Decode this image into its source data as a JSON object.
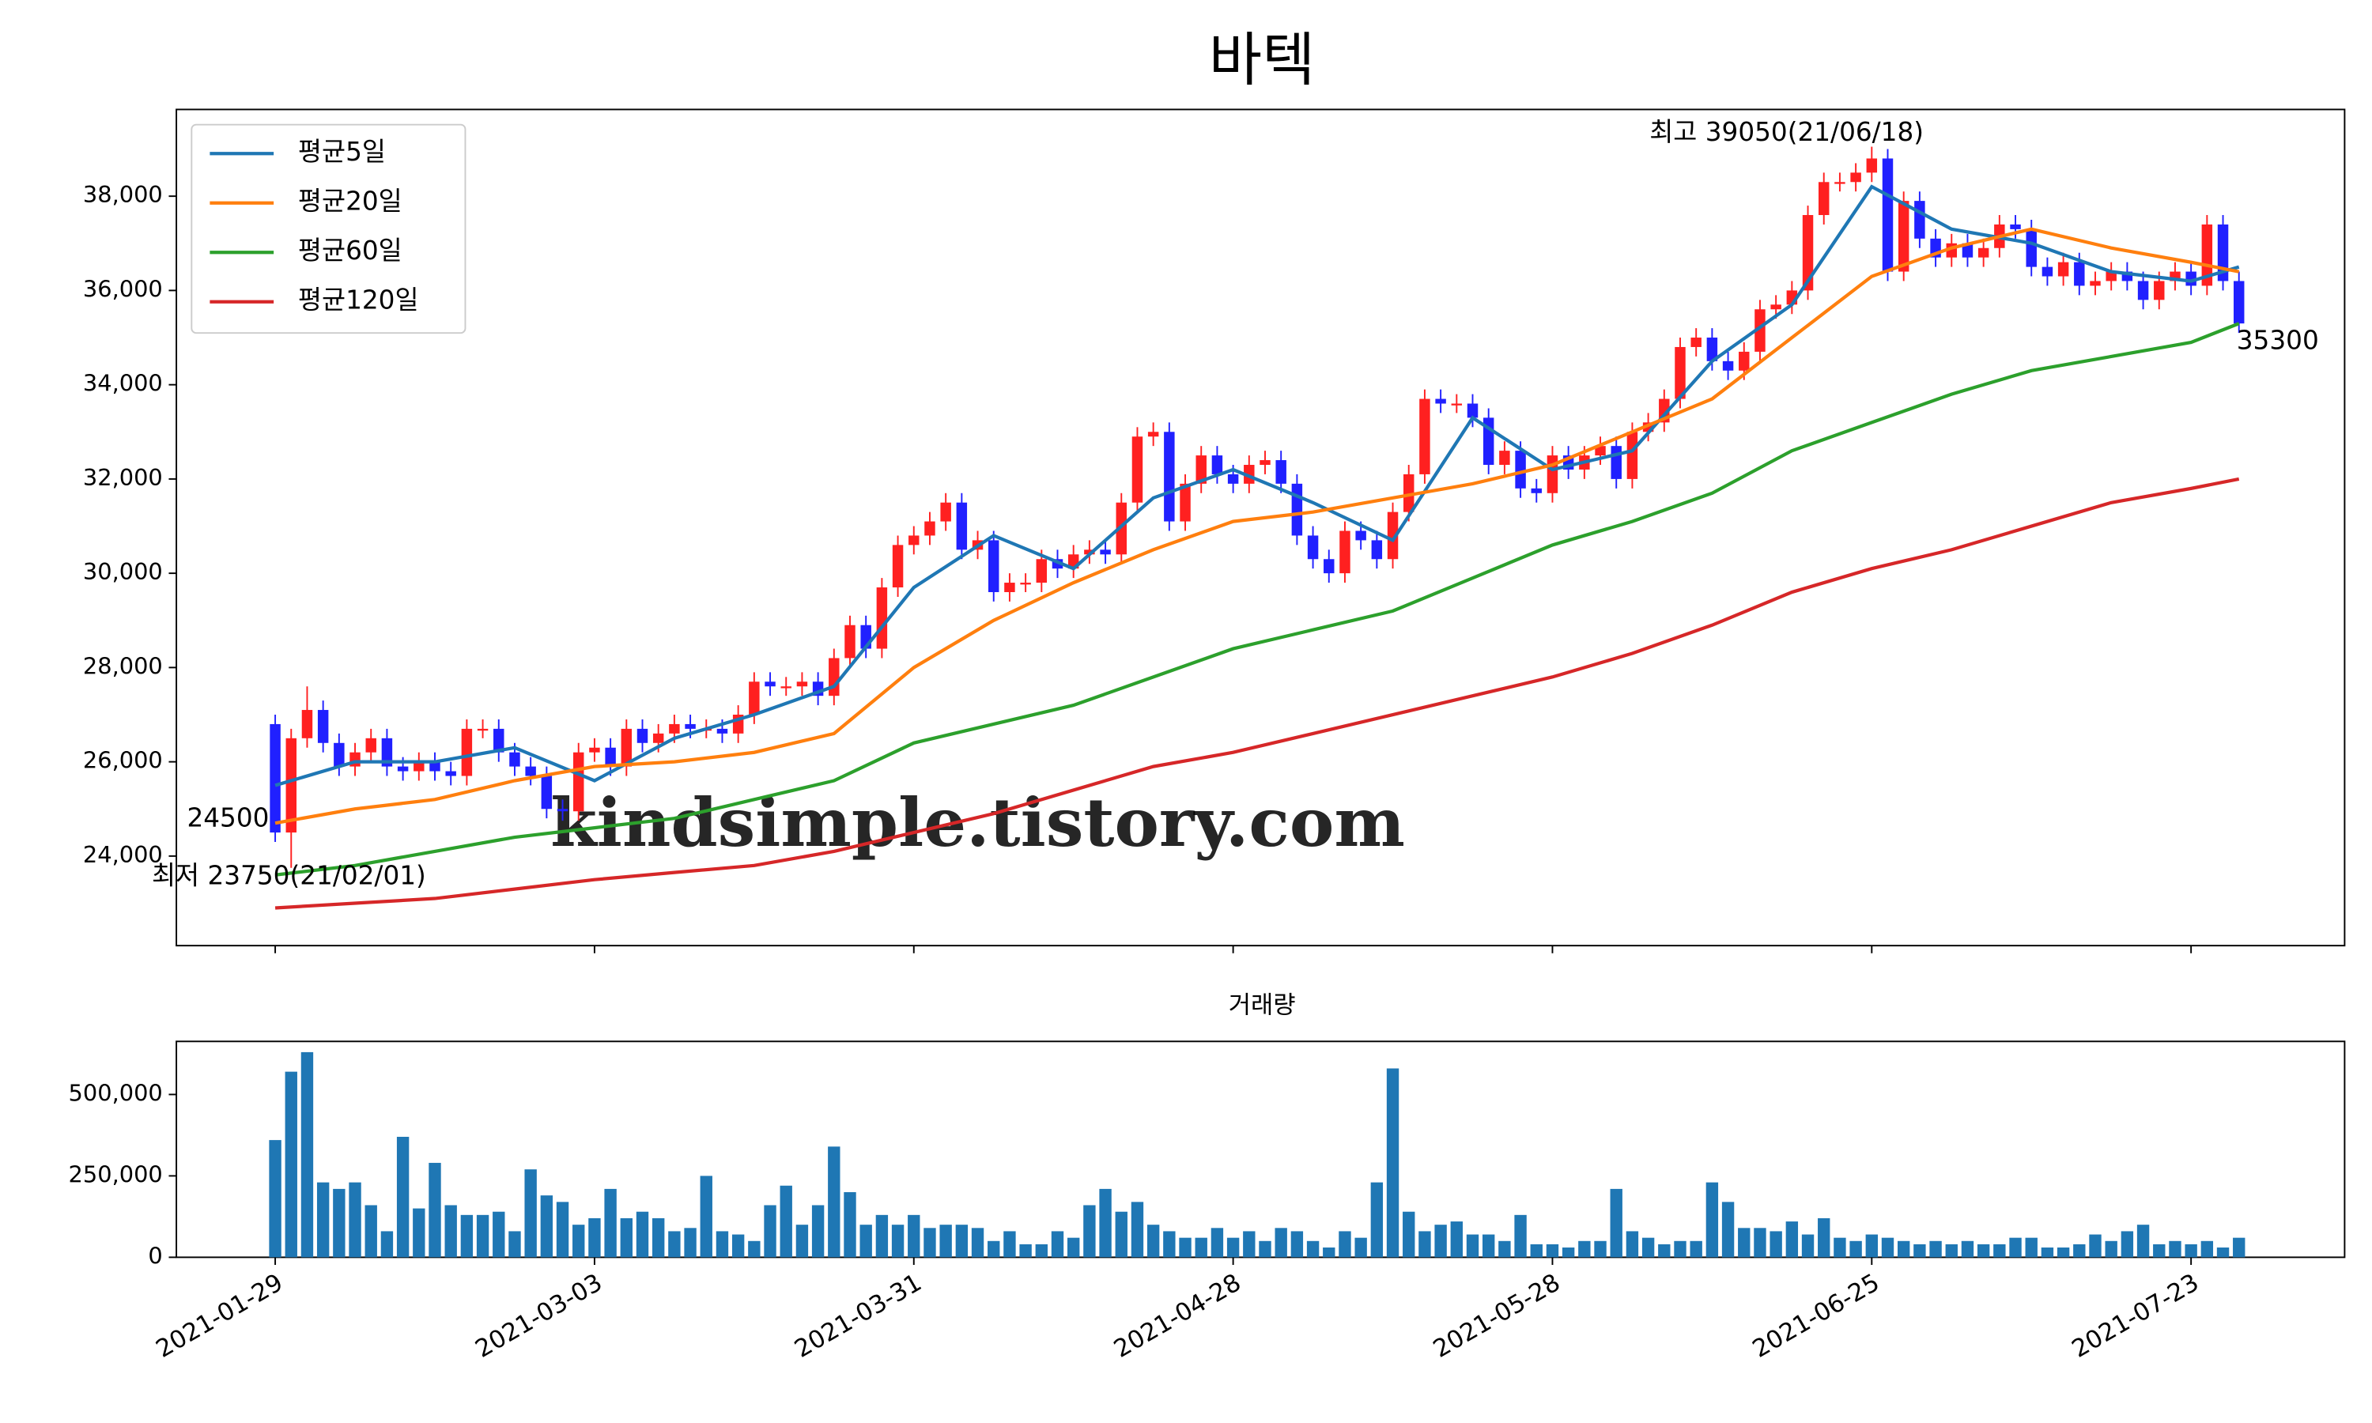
{
  "chart_data": [
    {
      "type": "candlestick",
      "title": "바텍",
      "open": [
        26800,
        24500,
        26500,
        27100,
        26400,
        25900,
        26200,
        26500,
        25900,
        25800,
        26000,
        25800,
        25700,
        26700,
        26700,
        26200,
        25900,
        25700,
        25000,
        24950,
        26200,
        26300,
        25900,
        26700,
        26400,
        26600,
        26800,
        26700,
        26700,
        26600,
        27000,
        27700,
        27600,
        27600,
        27700,
        27400,
        28200,
        28900,
        28400,
        29700,
        30600,
        30800,
        31100,
        31500,
        30500,
        30700,
        29600,
        29800,
        29800,
        30300,
        30100,
        30400,
        30500,
        30400,
        31500,
        32900,
        33000,
        31100,
        31900,
        32500,
        32100,
        31900,
        32300,
        32400,
        31900,
        30800,
        30300,
        30000,
        30900,
        30700,
        30300,
        31300,
        32100,
        33700,
        33600,
        33600,
        33300,
        32300,
        32600,
        31800,
        31700,
        32500,
        32200,
        32500,
        32700,
        32000,
        33000,
        33200,
        33700,
        34800,
        35000,
        34500,
        34300,
        34700,
        35600,
        35700,
        36000,
        37600,
        38300,
        38300,
        38500,
        38800,
        36400,
        37900,
        37100,
        36700,
        37000,
        36700,
        36900,
        37400,
        37300,
        36500,
        36300,
        36600,
        36100,
        36200,
        36400,
        36200,
        35800,
        36200,
        36400,
        36100,
        37400,
        36200
      ],
      "high": [
        27000,
        26700,
        27600,
        27300,
        26600,
        26400,
        26700,
        26700,
        26100,
        26200,
        26200,
        26000,
        26900,
        26900,
        26900,
        26400,
        26100,
        25900,
        25200,
        26400,
        26500,
        26500,
        26900,
        26900,
        26800,
        27000,
        27000,
        26900,
        26900,
        27200,
        27900,
        27900,
        27800,
        27900,
        27900,
        28400,
        29100,
        29100,
        29900,
        30800,
        31000,
        31300,
        31700,
        31700,
        30900,
        30900,
        30000,
        30000,
        30500,
        30500,
        30600,
        30700,
        30700,
        31700,
        33100,
        33200,
        33200,
        32100,
        32700,
        32700,
        32300,
        32500,
        32600,
        32600,
        32100,
        31000,
        30500,
        31100,
        31100,
        30900,
        31500,
        32300,
        33900,
        33900,
        33800,
        33800,
        33500,
        32800,
        32800,
        32000,
        32700,
        32700,
        32700,
        32900,
        32900,
        33200,
        33400,
        33900,
        35000,
        35200,
        35200,
        34700,
        34900,
        35800,
        35900,
        36200,
        37800,
        38500,
        38500,
        38700,
        39050,
        39000,
        38100,
        38100,
        37300,
        37200,
        37200,
        37100,
        37600,
        37600,
        37500,
        36700,
        36800,
        36800,
        36400,
        36600,
        36600,
        36400,
        36400,
        36600,
        36600,
        37600,
        37600,
        36400
      ],
      "low": [
        24300,
        23750,
        26300,
        26200,
        25700,
        25700,
        26000,
        25700,
        25600,
        25600,
        25600,
        25500,
        25500,
        26500,
        26000,
        25700,
        25500,
        24800,
        24750,
        24750,
        26000,
        25700,
        25700,
        26200,
        26200,
        26400,
        26500,
        26500,
        26400,
        26400,
        26800,
        27400,
        27400,
        27400,
        27200,
        27200,
        28000,
        28200,
        28200,
        29500,
        30400,
        30600,
        30900,
        30300,
        30300,
        29400,
        29400,
        29600,
        29600,
        29900,
        29900,
        30200,
        30200,
        30200,
        31300,
        32700,
        30900,
        30900,
        31700,
        31900,
        31700,
        31700,
        32100,
        31700,
        30600,
        30100,
        29800,
        29800,
        30500,
        30100,
        30100,
        31100,
        31900,
        33400,
        33400,
        33100,
        32100,
        32100,
        31600,
        31500,
        31500,
        32000,
        32000,
        32300,
        31800,
        31800,
        32800,
        33000,
        33500,
        34600,
        34300,
        34100,
        34100,
        34500,
        35400,
        35500,
        35800,
        37400,
        38100,
        38100,
        38300,
        36200,
        36200,
        36900,
        36500,
        36500,
        36500,
        36500,
        36700,
        37100,
        36300,
        36100,
        36100,
        35900,
        35900,
        36000,
        36000,
        35600,
        35600,
        36000,
        35900,
        35900,
        36000,
        35100
      ],
      "close": [
        24500,
        26500,
        27100,
        26400,
        25900,
        26200,
        26500,
        25900,
        25800,
        26000,
        25800,
        25700,
        26700,
        26700,
        26200,
        25900,
        25700,
        25000,
        24950,
        26200,
        26300,
        25900,
        26700,
        26400,
        26600,
        26800,
        26700,
        26700,
        26600,
        27000,
        27700,
        27600,
        27600,
        27700,
        27400,
        28200,
        28900,
        28400,
        29700,
        30600,
        30800,
        31100,
        31500,
        30500,
        30700,
        29600,
        29800,
        29800,
        30300,
        30100,
        30400,
        30500,
        30400,
        31500,
        32900,
        33000,
        31100,
        31900,
        32500,
        32100,
        31900,
        32300,
        32400,
        31900,
        30800,
        30300,
        30000,
        30900,
        30700,
        30300,
        31300,
        32100,
        33700,
        33600,
        33600,
        33300,
        32300,
        32600,
        31800,
        31700,
        32500,
        32200,
        32500,
        32700,
        32000,
        33000,
        33200,
        33700,
        34800,
        35000,
        34500,
        34300,
        34700,
        35600,
        35700,
        36000,
        37600,
        38300,
        38300,
        38500,
        38800,
        36400,
        37900,
        37100,
        36700,
        37000,
        36700,
        36900,
        37400,
        37300,
        36500,
        36300,
        36600,
        36100,
        36200,
        36400,
        36200,
        35800,
        36200,
        36400,
        36100,
        37400,
        36200,
        35300
      ],
      "up_color": "#ff2020",
      "down_color": "#2020ff",
      "series": [
        {
          "name": "평균5일",
          "color": "#1f77b4",
          "x": [
            0,
            5,
            10,
            15,
            20,
            25,
            30,
            35,
            40,
            45,
            50,
            55,
            60,
            65,
            70,
            75,
            80,
            85,
            90,
            95,
            100,
            105,
            110,
            115,
            120,
            123
          ],
          "values": [
            25500,
            26000,
            26000,
            26300,
            25600,
            26500,
            27000,
            27600,
            29700,
            30800,
            30100,
            31600,
            32200,
            31500,
            30700,
            33300,
            32200,
            32600,
            34500,
            35700,
            38200,
            37300,
            37000,
            36400,
            36200,
            36500
          ]
        },
        {
          "name": "평균20일",
          "color": "#ff7f0e",
          "x": [
            0,
            5,
            10,
            15,
            20,
            25,
            30,
            35,
            40,
            45,
            50,
            55,
            60,
            65,
            70,
            75,
            80,
            85,
            90,
            95,
            100,
            105,
            110,
            115,
            120,
            123
          ],
          "values": [
            24700,
            25000,
            25200,
            25600,
            25900,
            26000,
            26200,
            26600,
            28000,
            29000,
            29800,
            30500,
            31100,
            31300,
            31600,
            31900,
            32300,
            33000,
            33700,
            35000,
            36300,
            36900,
            37300,
            36900,
            36600,
            36400
          ]
        },
        {
          "name": "평균60일",
          "color": "#2ca02c",
          "x": [
            0,
            5,
            10,
            15,
            20,
            25,
            30,
            35,
            40,
            45,
            50,
            55,
            60,
            65,
            70,
            75,
            80,
            85,
            90,
            95,
            100,
            105,
            110,
            115,
            120,
            123
          ],
          "values": [
            23600,
            23800,
            24100,
            24400,
            24600,
            24800,
            25200,
            25600,
            26400,
            26800,
            27200,
            27800,
            28400,
            28800,
            29200,
            29900,
            30600,
            31100,
            31700,
            32600,
            33200,
            33800,
            34300,
            34600,
            34900,
            35300
          ]
        },
        {
          "name": "평균120일",
          "color": "#d62728",
          "x": [
            0,
            5,
            10,
            15,
            20,
            25,
            30,
            35,
            40,
            45,
            50,
            55,
            60,
            65,
            70,
            75,
            80,
            85,
            90,
            95,
            100,
            105,
            110,
            115,
            120,
            123
          ],
          "values": [
            22900,
            23000,
            23100,
            23300,
            23500,
            23650,
            23800,
            24100,
            24500,
            24900,
            25400,
            25900,
            26200,
            26600,
            27000,
            27400,
            27800,
            28300,
            28900,
            29600,
            30100,
            30500,
            31000,
            31500,
            31800,
            32000
          ]
        }
      ],
      "ylim": [
        22100,
        39840
      ],
      "yticks": [
        {
          "value": 24000,
          "label": "24,000"
        },
        {
          "value": 26000,
          "label": "26,000"
        },
        {
          "value": 28000,
          "label": "28,000"
        },
        {
          "value": 30000,
          "label": "30,000"
        },
        {
          "value": 32000,
          "label": "32,000"
        },
        {
          "value": 34000,
          "label": "34,000"
        },
        {
          "value": 36000,
          "label": "36,000"
        },
        {
          "value": 38000,
          "label": "38,000"
        }
      ],
      "xticks": [
        0,
        20,
        40,
        60,
        80,
        100,
        120
      ],
      "legend": "upper left",
      "annotations": [
        {
          "text": "최고 39050(21/06/18)",
          "color": "#ff0000"
        },
        {
          "text": "최저 23750(21/02/01)",
          "color": "#0000ff"
        },
        {
          "text": "24500",
          "color": "#000000"
        },
        {
          "text": "35300",
          "color": "#000000"
        }
      ],
      "watermark": "kindsimple.tistory.com"
    },
    {
      "type": "bar",
      "title": "거래량",
      "color": "#1f77b4",
      "categories": [
        "2021-01-29",
        null,
        null,
        null,
        null,
        null,
        null,
        null,
        null,
        null,
        null,
        null,
        null,
        null,
        null,
        null,
        null,
        null,
        null,
        null,
        "2021-03-03",
        null,
        null,
        null,
        null,
        null,
        null,
        null,
        null,
        null,
        null,
        null,
        null,
        null,
        null,
        null,
        null,
        null,
        null,
        null,
        "2021-03-31",
        null,
        null,
        null,
        null,
        null,
        null,
        null,
        null,
        null,
        null,
        null,
        null,
        null,
        null,
        null,
        null,
        null,
        null,
        null,
        "2021-04-28",
        null,
        null,
        null,
        null,
        null,
        null,
        null,
        null,
        null,
        null,
        null,
        null,
        null,
        null,
        null,
        null,
        null,
        null,
        null,
        "2021-05-28",
        null,
        null,
        null,
        null,
        null,
        null,
        null,
        null,
        null,
        null,
        null,
        null,
        null,
        null,
        null,
        null,
        null,
        null,
        null,
        "2021-06-25",
        null,
        null,
        null,
        null,
        null,
        null,
        null,
        null,
        null,
        null,
        null,
        null,
        null,
        null,
        null,
        null,
        null,
        null,
        null,
        "2021-07-23",
        null,
        null,
        null
      ],
      "values": [
        360000,
        570000,
        630000,
        230000,
        210000,
        230000,
        160000,
        80000,
        370000,
        150000,
        290000,
        160000,
        130000,
        130000,
        140000,
        80000,
        270000,
        190000,
        170000,
        100000,
        120000,
        210000,
        120000,
        140000,
        120000,
        80000,
        90000,
        250000,
        80000,
        70000,
        50000,
        160000,
        220000,
        100000,
        160000,
        340000,
        200000,
        100000,
        130000,
        100000,
        130000,
        90000,
        100000,
        100000,
        90000,
        50000,
        80000,
        40000,
        40000,
        80000,
        60000,
        160000,
        210000,
        140000,
        170000,
        100000,
        80000,
        60000,
        60000,
        90000,
        60000,
        80000,
        50000,
        90000,
        80000,
        50000,
        30000,
        80000,
        60000,
        230000,
        580000,
        140000,
        80000,
        100000,
        110000,
        70000,
        70000,
        50000,
        130000,
        40000,
        40000,
        30000,
        50000,
        50000,
        210000,
        80000,
        60000,
        40000,
        50000,
        50000,
        230000,
        170000,
        90000,
        90000,
        80000,
        110000,
        70000,
        120000,
        60000,
        50000,
        70000,
        60000,
        50000,
        40000,
        50000,
        40000,
        50000,
        40000,
        40000,
        60000,
        60000,
        30000,
        30000,
        40000,
        70000,
        50000,
        80000,
        100000,
        40000,
        50000,
        40000,
        50000,
        30000,
        60000
      ],
      "ylim": [
        0,
        663000
      ],
      "yticks": [
        0,
        {
          "value": 250000,
          "label": "250,000"
        },
        {
          "value": 500000,
          "label": "500,000"
        }
      ]
    }
  ]
}
